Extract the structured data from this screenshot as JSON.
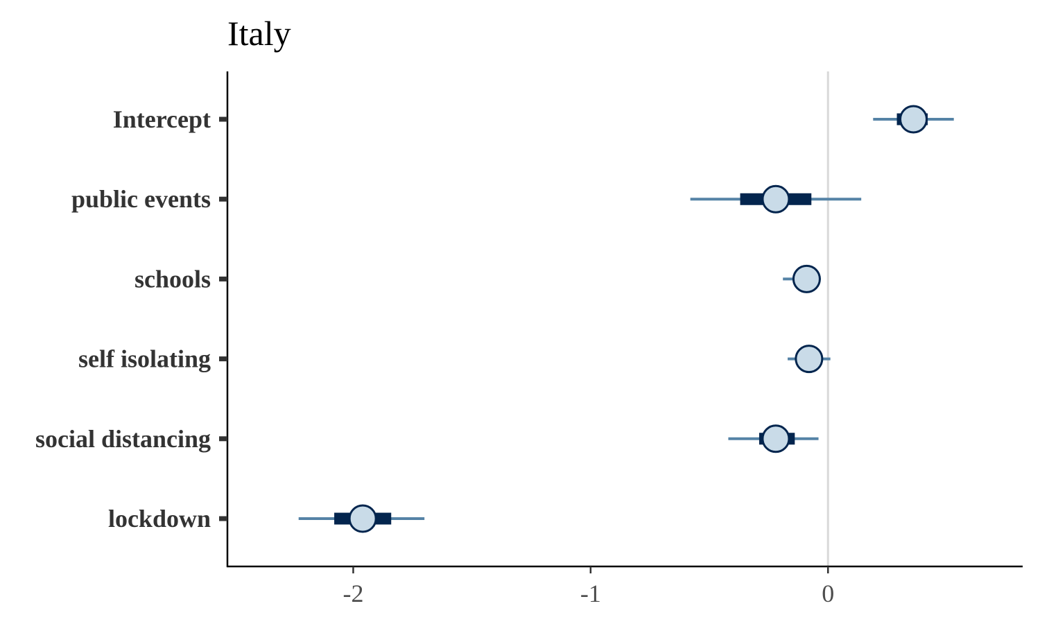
{
  "chart_data": {
    "type": "interval",
    "title": "Italy",
    "xlabel": "",
    "ylabel": "",
    "xlim": [
      -2.53,
      0.82
    ],
    "x_ticks": [
      -2,
      -1,
      0
    ],
    "x_tick_labels": [
      "-2",
      "-1",
      "0"
    ],
    "reference_line_x": 0,
    "grid": false,
    "parameters": [
      {
        "label": "Intercept",
        "median": 0.36,
        "inner": [
          0.29,
          0.42
        ],
        "outer": [
          0.19,
          0.53
        ]
      },
      {
        "label": "public events",
        "median": -0.22,
        "inner": [
          -0.37,
          -0.07
        ],
        "outer": [
          -0.58,
          0.14
        ]
      },
      {
        "label": "schools",
        "median": -0.09,
        "inner": [
          -0.12,
          -0.06
        ],
        "outer": [
          -0.19,
          -0.03
        ]
      },
      {
        "label": "self isolating",
        "median": -0.08,
        "inner": [
          -0.11,
          -0.04
        ],
        "outer": [
          -0.17,
          0.01
        ]
      },
      {
        "label": "social distancing",
        "median": -0.22,
        "inner": [
          -0.29,
          -0.14
        ],
        "outer": [
          -0.42,
          -0.04
        ]
      },
      {
        "label": "lockdown",
        "median": -1.96,
        "inner": [
          -2.08,
          -1.84
        ],
        "outer": [
          -2.23,
          -1.7
        ]
      }
    ],
    "colors": {
      "outer_line": "#5583a6",
      "inner_bar": "#03254e",
      "point_fill": "#c9dbe8",
      "point_stroke": "#03254e",
      "zero_line": "#d9d9d9",
      "axis": "#000000",
      "tick": "#333333"
    }
  }
}
